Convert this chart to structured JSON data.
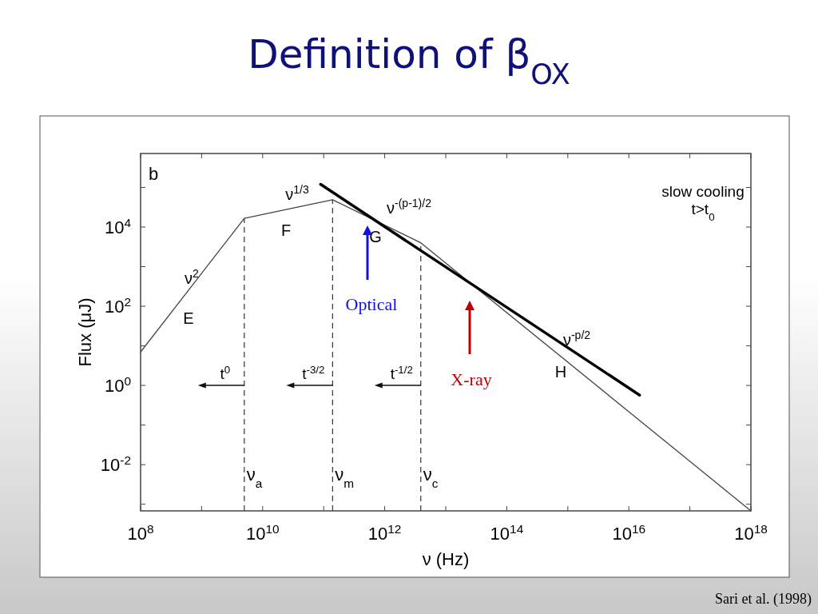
{
  "chart_data": {
    "type": "line",
    "title": "Definition of β$_{OX}$",
    "xlabel": "ν (Hz)",
    "ylabel": "Flux (μJ)",
    "log": "xy",
    "xlim": [
      100000000.0,
      1e+18
    ],
    "ylim": [
      0.00068,
      720000.0
    ],
    "xticks": [
      {
        "value": 100000000.0,
        "label": "10$^{8}$"
      },
      {
        "value": 1000000000.0,
        "label": null
      },
      {
        "value": 10000000000.0,
        "label": "10$^{10}$"
      },
      {
        "value": 100000000000.0,
        "label": null
      },
      {
        "value": 1000000000000.0,
        "label": "10$^{12}$"
      },
      {
        "value": 10000000000000.0,
        "label": null
      },
      {
        "value": 100000000000000.0,
        "label": "10$^{14}$"
      },
      {
        "value": 1000000000000000.0,
        "label": null
      },
      {
        "value": 1e+16,
        "label": "10$^{16}$"
      },
      {
        "value": 1e+17,
        "label": null
      },
      {
        "value": 1e+18,
        "label": "10$^{18}$"
      }
    ],
    "yticks": [
      {
        "value": 0.001,
        "label": null
      },
      {
        "value": 0.01,
        "label": "10$^{-2}$"
      },
      {
        "value": 0.1,
        "label": null
      },
      {
        "value": 1,
        "label": "10$^{0}$"
      },
      {
        "value": 10,
        "label": null
      },
      {
        "value": 100,
        "label": "10$^{2}$"
      },
      {
        "value": 1000,
        "label": null
      },
      {
        "value": 10000.0,
        "label": "10$^{4}$"
      },
      {
        "value": 100000.0,
        "label": null
      }
    ],
    "grid": false,
    "marker": "none",
    "line_style": "solid",
    "series": [
      {
        "color": "#444444",
        "x": [
          100000000.0,
          5000000000.0,
          140000000000.0,
          3900000000000.0,
          1e+18
        ],
        "values": [
          7,
          16600,
          49000,
          4000,
          0.00068
        ]
      },
      {
        "color": "#000000",
        "x": [
          89000000000.0,
          1.5e+16
        ],
        "values": [
          120000,
          0.57
        ]
      }
    ],
    "ref_lines": [
      {
        "axis": "x",
        "value": 5000000000.0,
        "label": "ν$_{a}$",
        "color": "#333333",
        "line_style": "dashed"
      },
      {
        "axis": "x",
        "value": 140000000000.0,
        "label": "ν$_{m}$",
        "color": "#333333",
        "line_style": "dashed"
      },
      {
        "axis": "x",
        "value": 3900000000000.0,
        "label": "ν$_{c}$",
        "color": "#333333",
        "line_style": "dashed"
      }
    ],
    "annotations": [
      "b",
      "slow cooling",
      "t>t$_{0}$",
      "ν$^{2}$",
      "E",
      "ν$^{1/3}$",
      "F",
      "ν$^{-(p-1)/2}$",
      "G",
      "ν$^{-p/2}$",
      "H",
      {
        "text": "t$^{0}$",
        "x": 5000000000.0,
        "y": 1
      },
      {
        "text": "t$^{-3/2}$",
        "x": 140000000000.0,
        "y": 1
      },
      {
        "text": "t$^{-1/2}$",
        "x": 3900000000000.0,
        "y": 1
      },
      "Optical",
      "X-ray",
      "Sari et al. (1998)"
    ]
  }
}
